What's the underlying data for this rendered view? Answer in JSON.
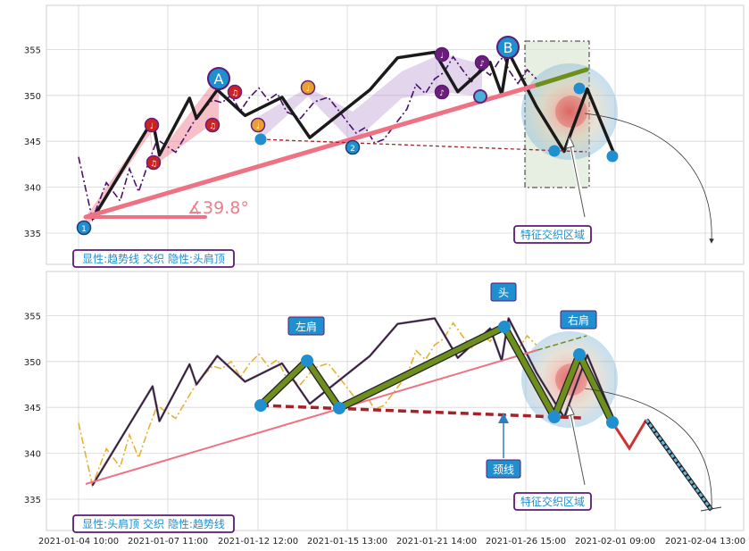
{
  "chart_data": [
    {
      "type": "line",
      "panel": "top",
      "ylim": [
        331.5,
        360.0
      ],
      "yticks": [
        335,
        340,
        345,
        350,
        355
      ],
      "grid": true,
      "series": [
        {
          "role": "price-dashdot",
          "color": "#4b0f6e",
          "points": [
            [
              0,
              343.3
            ],
            [
              3,
              336.5
            ],
            [
              6,
              340.5
            ],
            [
              9,
              338.5
            ],
            [
              11,
              342
            ],
            [
              13,
              339.5
            ],
            [
              15,
              342.5
            ],
            [
              17,
              345.2
            ],
            [
              19,
              344.5
            ],
            [
              21,
              343.8
            ],
            [
              23,
              345.5
            ],
            [
              25,
              347.2
            ],
            [
              27,
              348.5
            ],
            [
              29,
              349.5
            ],
            [
              31,
              349.2
            ],
            [
              33,
              350
            ],
            [
              35,
              348.3
            ],
            [
              37,
              349.8
            ],
            [
              39,
              350.8
            ],
            [
              41,
              349.5
            ],
            [
              43,
              350.2
            ],
            [
              45,
              348.2
            ],
            [
              48,
              347.5
            ],
            [
              51,
              349.3
            ],
            [
              54,
              349.8
            ],
            [
              56,
              348.5
            ],
            [
              58,
              347.2
            ],
            [
              60,
              345.9
            ],
            [
              62,
              346.5
            ],
            [
              64,
              344.8
            ],
            [
              66,
              345.2
            ],
            [
              69,
              347.2
            ],
            [
              71,
              348.5
            ],
            [
              73,
              351.2
            ],
            [
              75,
              350.2
            ],
            [
              77,
              351.8
            ],
            [
              79,
              352.5
            ],
            [
              81,
              354.2
            ],
            [
              83,
              352.8
            ],
            [
              85,
              351.5
            ],
            [
              87,
              353
            ],
            [
              89,
              352.2
            ],
            [
              91,
              353.8
            ],
            [
              92,
              354.2
            ],
            [
              93,
              352.8
            ],
            [
              95,
              351.3
            ],
            [
              97,
              352.8
            ],
            [
              99,
              351.8
            ]
          ]
        },
        {
          "role": "black-zigzag",
          "color": "#1a1a1a",
          "points": [
            [
              3,
              336.5
            ],
            [
              16,
              347.3
            ],
            [
              17.5,
              343.5
            ],
            [
              24,
              349.7
            ],
            [
              25.5,
              347.5
            ],
            [
              30,
              350.6
            ],
            [
              36,
              347.8
            ],
            [
              44,
              349.8
            ],
            [
              50,
              345.4
            ],
            [
              63,
              350.6
            ],
            [
              69,
              354.1
            ],
            [
              77,
              354.7
            ],
            [
              82,
              350.4
            ],
            [
              89,
              353.6
            ],
            [
              91.5,
              350.1
            ],
            [
              93,
              354.7
            ],
            [
              99,
              348.8
            ],
            [
              105,
              343.9
            ],
            [
              110,
              350.7
            ],
            [
              116,
              343.4
            ]
          ]
        },
        {
          "role": "trendline",
          "color": "#ee7283",
          "points": [
            [
              3,
              336.7
            ],
            [
              102,
              351.2
            ]
          ]
        },
        {
          "role": "trendline-ext",
          "color": "#6e8f1e",
          "points": [
            [
              102,
              351.2
            ],
            [
              112,
              352.9
            ]
          ]
        },
        {
          "role": "horizontal-angle-ref",
          "color": "#ee7283",
          "points": [
            [
              3,
              336.7
            ],
            [
              27,
              336.7
            ]
          ]
        },
        {
          "role": "neckline",
          "color": "#a2232a",
          "points": [
            [
              39,
              345.2
            ],
            [
              111,
              343.9
            ]
          ]
        }
      ],
      "markers": [
        {
          "x": 3,
          "y": 335.5,
          "label": "1"
        },
        {
          "x": 66,
          "y": 344.6,
          "label": "2"
        },
        {
          "x": 30,
          "y": 351.9,
          "label": "A"
        },
        {
          "x": 93,
          "y": 355.5,
          "label": "B"
        }
      ],
      "music_notes": [
        {
          "x": 17,
          "y": 347.0,
          "color": "#cc2222"
        },
        {
          "x": 18.5,
          "y": 342.7,
          "color": "#cc2222"
        },
        {
          "x": 30.5,
          "y": 347.0,
          "color": "#cc2222"
        },
        {
          "x": 33,
          "y": 350.4,
          "color": "#cc2222"
        },
        {
          "x": 39,
          "y": 346.9,
          "color": "#e8a030"
        },
        {
          "x": 57,
          "y": 350.8,
          "color": "#e8a030"
        },
        {
          "x": 83,
          "y": 354.6,
          "color": "#6b1e7a"
        },
        {
          "x": 83,
          "y": 350.4,
          "color": "#6b1e7a"
        },
        {
          "x": 90,
          "y": 353.9,
          "color": "#6b1e7a"
        }
      ],
      "angle_label": "∡39.8°",
      "box_label": "显性:趋势线 交织 隐性:头肩顶",
      "callout_label": "特征交织区域"
    },
    {
      "type": "line",
      "panel": "bottom",
      "ylim": [
        331.5,
        360.0
      ],
      "yticks": [
        335,
        340,
        345,
        350,
        355
      ],
      "grid": true,
      "series": [
        {
          "role": "price-dashdot",
          "color": "#e8b030"
        },
        {
          "role": "black-zigzag",
          "color": "#1a1a1a"
        },
        {
          "role": "trendline",
          "color": "#ee7283"
        },
        {
          "role": "neckline",
          "color": "#a2232a"
        },
        {
          "role": "head-shoulders",
          "color": "#6e8f1e"
        },
        {
          "role": "projection",
          "color": "#cc3333"
        }
      ],
      "head_shoulders_points": [
        {
          "x": 39,
          "y": 345.3
        },
        {
          "x": 51,
          "y": 350.1
        },
        {
          "x": 57,
          "y": 345.0
        },
        {
          "x": 93,
          "y": 353.8
        },
        {
          "x": 105,
          "y": 344.0
        },
        {
          "x": 110,
          "y": 350.8
        },
        {
          "x": 116,
          "y": 343.5
        }
      ],
      "labels": {
        "left_shoulder": "左肩",
        "head": "头",
        "right_shoulder": "右肩",
        "neckline": "颈线",
        "callout": "特征交织区域",
        "box": "显性:头肩顶 交织 隐性:趋势线"
      }
    }
  ],
  "x_tick_labels": [
    "2021-01-04 10:00",
    "2021-01-07 11:00",
    "2021-01-12 12:00",
    "2021-01-15 13:00",
    "2021-01-21 14:00",
    "2021-01-26 15:00",
    "2021-02-01 09:00",
    "2021-02-04 13:00"
  ],
  "y_tick_labels": [
    "355",
    "350",
    "345",
    "340",
    "335"
  ],
  "colors": {
    "grid": "#cfcfcf",
    "trend": "#ee7283",
    "blue_dot": "#1f8fd0",
    "box_border": "#5b1a75",
    "text_blue": "#1f8fd0",
    "label_box": "#1f8fd0"
  }
}
